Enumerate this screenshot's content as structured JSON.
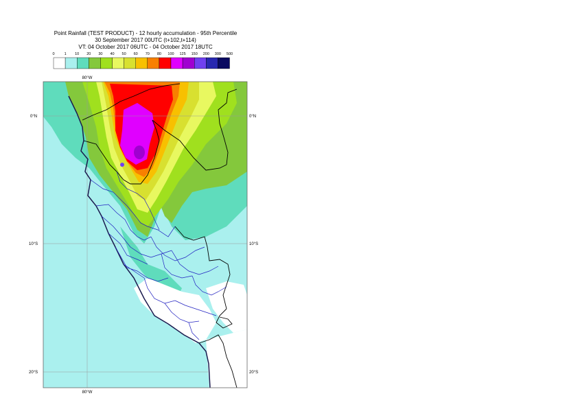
{
  "title": {
    "line1": "Point Rainfall (TEST PRODUCT) - 12 hourly accumulation - 95th Percentile",
    "line2": "30 September 2017 00UTC (t+102,t+114)",
    "line3": "VT: 04 October 2017 06UTC - 04 October 2017 18UTC"
  },
  "legend": {
    "ticks": [
      "0",
      "1",
      "10",
      "20",
      "30",
      "40",
      "50",
      "60",
      "70",
      "80",
      "100",
      "125",
      "150",
      "200",
      "300",
      "500"
    ],
    "colors": [
      "#ffffff",
      "#aaf0ee",
      "#5fdcbc",
      "#84c83c",
      "#a0e01e",
      "#e8f860",
      "#d8e030",
      "#f8c000",
      "#f88000",
      "#ff0000",
      "#e000ff",
      "#a000d0",
      "#7040f0",
      "#2828b0",
      "#0a0a60"
    ]
  },
  "axes": {
    "lon_top": "80°W",
    "lon_bottom": "80°W",
    "lat_right": [
      "0°N",
      "10°S",
      "20°S"
    ],
    "lat_left": [
      "0°N",
      "10°S",
      "20°S"
    ]
  },
  "map_colors": {
    "ocean_light": "#aaf0ee",
    "teal": "#5fdcbc",
    "green": "#84c83c",
    "lime": "#a0e01e",
    "yellow": "#e8f860",
    "olive_yellow": "#d8e030",
    "orange_yellow": "#f8c000",
    "orange": "#f88000",
    "red": "#ff0000",
    "magenta": "#e000ff",
    "purple": "#a000d0",
    "coast": "#1a1a4e",
    "border_black": "#000000",
    "region_blue": "#2020c0",
    "grid": "#9a9a9a"
  }
}
